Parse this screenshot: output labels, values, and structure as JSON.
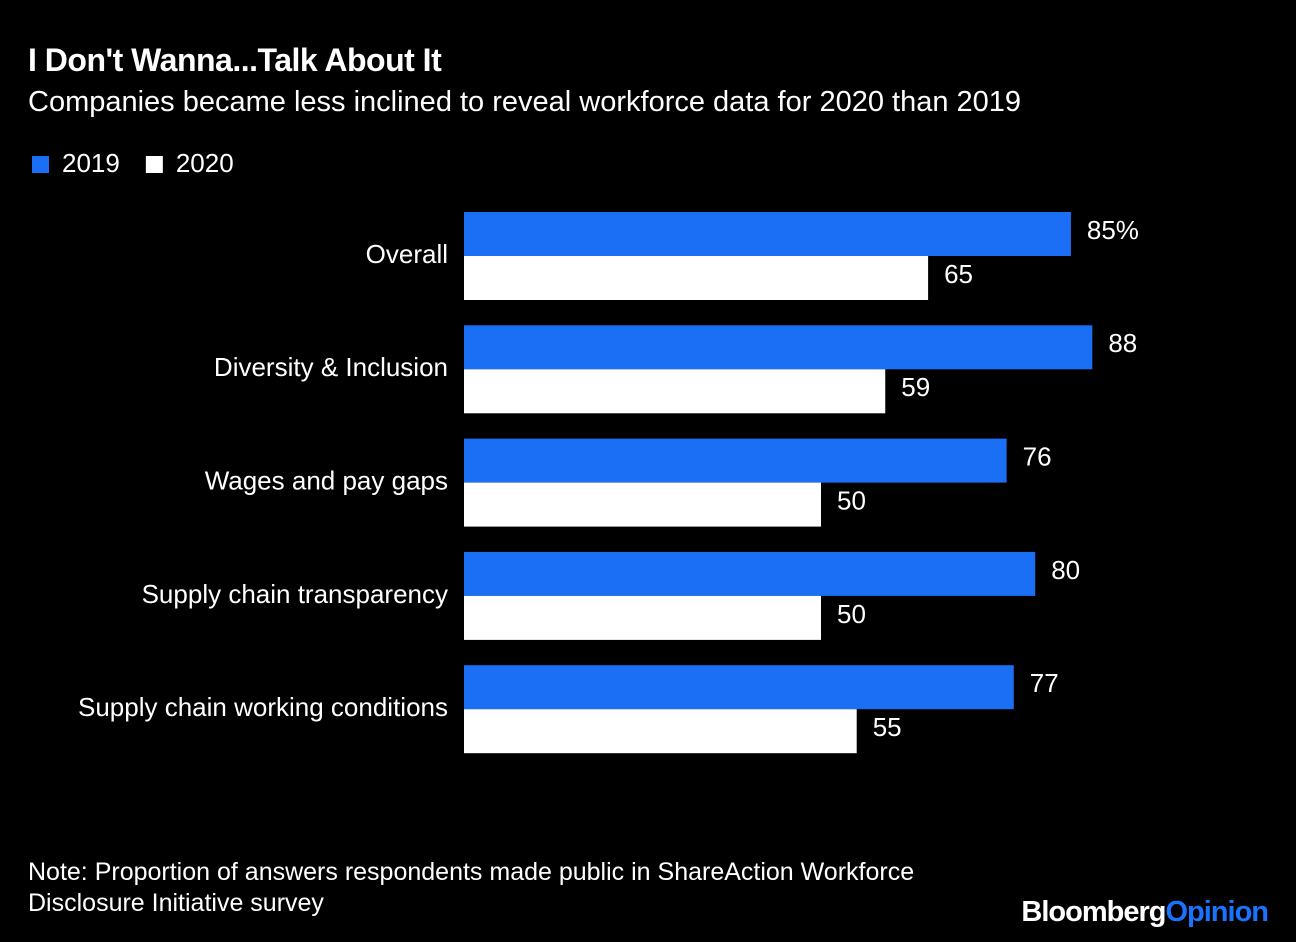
{
  "chart_data": {
    "type": "bar",
    "orientation": "horizontal",
    "title": "I Don't Wanna...Talk About It",
    "subtitle": "Companies became less inclined to reveal workforce data for 2020 than 2019",
    "categories": [
      "Overall",
      "Diversity & Inclusion",
      "Wages and pay gaps",
      "Supply chain transparency",
      "Supply chain working conditions"
    ],
    "series": [
      {
        "name": "2019",
        "color": "#1a6ff5",
        "values": [
          85,
          88,
          76,
          80,
          77
        ],
        "value_labels": [
          "85%",
          "88",
          "76",
          "80",
          "77"
        ]
      },
      {
        "name": "2020",
        "color": "#ffffff",
        "values": [
          65,
          59,
          50,
          50,
          55
        ]
      }
    ],
    "legend": "top-left",
    "note": "Note: Proportion of answers respondents made public in ShareAction Workforce Disclosure Initiative survey",
    "logo": {
      "brand": "Bloomberg",
      "section": "Opinion"
    }
  }
}
